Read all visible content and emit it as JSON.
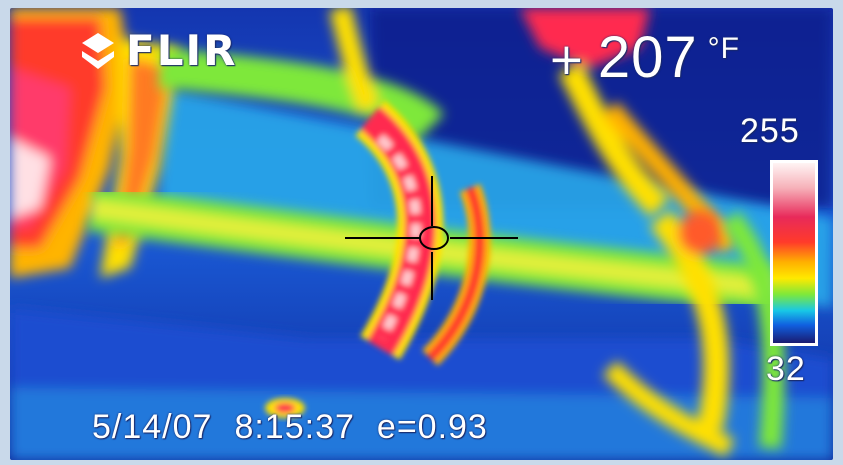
{
  "brand": {
    "logo_icon": "flir-logo-icon",
    "name": "FLIR"
  },
  "spot_meter": {
    "marker_icon": "crosshair-icon",
    "temperature": "207",
    "unit": "°F"
  },
  "color_scale": {
    "max_label": "255",
    "min_label": "32",
    "palette": "iron-rainbow"
  },
  "footer": {
    "date": "5/14/07",
    "time": "8:15:37",
    "emissivity": "e=0.93"
  },
  "colors": {
    "background": "#1848c8",
    "hot": "#ff2a50",
    "frame": "#c9d9ea"
  }
}
